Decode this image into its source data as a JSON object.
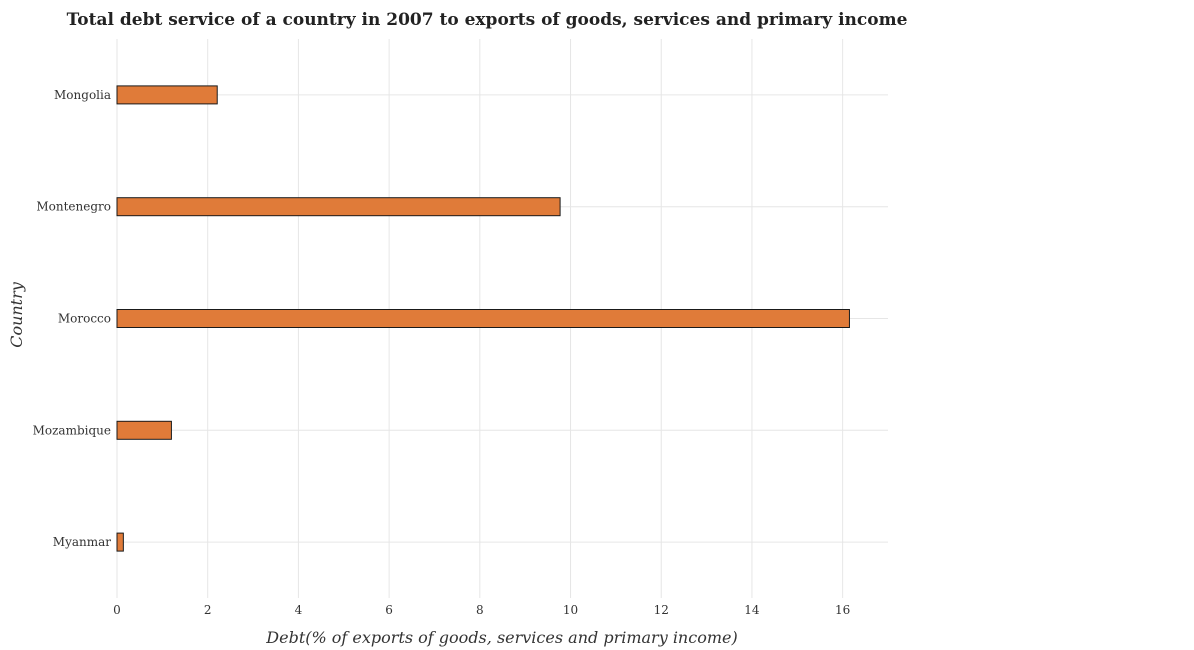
{
  "chart_data": {
    "type": "bar",
    "orientation": "horizontal",
    "title": "Total debt service of a country in 2007 to exports of goods, services and primary income",
    "xlabel": "Debt(% of exports of goods, services and primary income)",
    "ylabel": "Country",
    "categories": [
      "Mongolia",
      "Montenegro",
      "Morocco",
      "Mozambique",
      "Myanmar"
    ],
    "values": [
      2.21,
      9.77,
      16.15,
      1.2,
      0.14
    ],
    "xlim": [
      0,
      17
    ],
    "xticks": [
      0,
      2,
      4,
      6,
      8,
      10,
      12,
      14,
      16
    ],
    "grid": true,
    "bar_color": "#e07b39"
  }
}
